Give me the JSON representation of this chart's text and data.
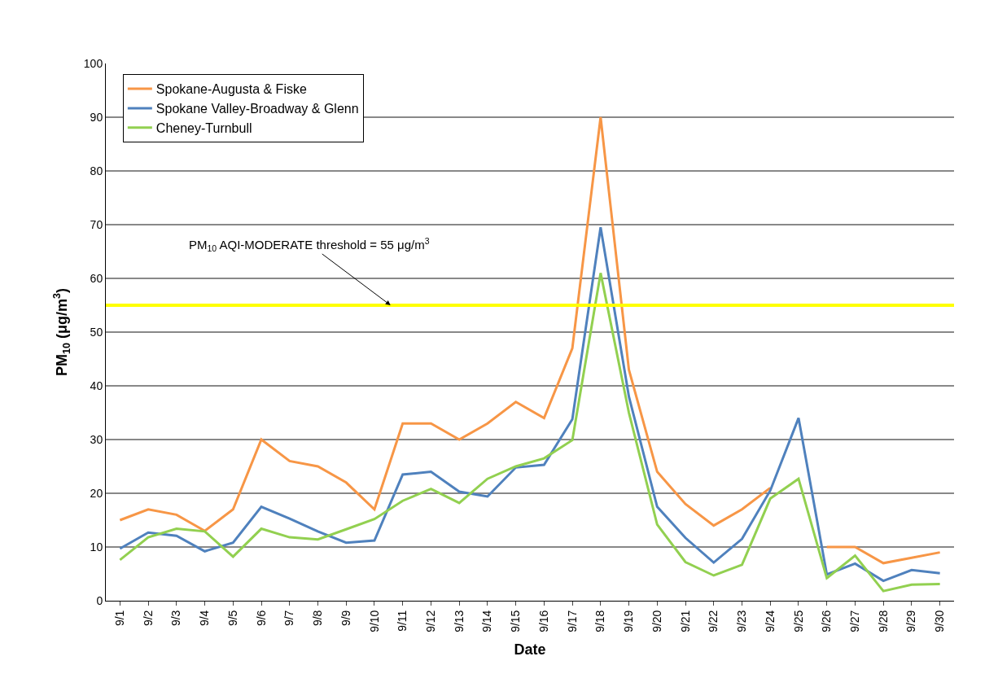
{
  "chart_data": {
    "type": "line",
    "categories": [
      "9/1",
      "9/2",
      "9/3",
      "9/4",
      "9/5",
      "9/6",
      "9/7",
      "9/8",
      "9/9",
      "9/10",
      "9/11",
      "9/12",
      "9/13",
      "9/14",
      "9/15",
      "9/16",
      "9/17",
      "9/18",
      "9/19",
      "9/20",
      "9/21",
      "9/22",
      "9/23",
      "9/24",
      "9/25",
      "9/26",
      "9/27",
      "9/28",
      "9/29",
      "9/30"
    ],
    "series": [
      {
        "name": "Spokane-Augusta & Fiske",
        "color": "#f79646",
        "values": [
          15,
          17,
          16,
          13,
          17,
          30,
          26,
          25,
          22,
          17,
          33,
          33,
          30,
          33,
          37,
          34,
          47,
          90,
          43,
          24,
          18,
          14,
          17,
          21,
          null,
          10,
          10,
          7,
          8,
          9
        ]
      },
      {
        "name": "Spokane Valley-Broadway & Glenn",
        "color": "#4f81bd",
        "values": [
          9.7,
          12.7,
          12.1,
          9.2,
          10.8,
          17.5,
          15.3,
          12.9,
          10.8,
          11.2,
          23.5,
          24,
          20.3,
          19.4,
          24.8,
          25.3,
          33.8,
          69.5,
          38,
          17.5,
          11.7,
          7.1,
          11.5,
          20.5,
          34,
          4.9,
          6.9,
          3.7,
          5.7,
          5.1
        ]
      },
      {
        "name": "Cheney-Turnbull",
        "color": "#92d050",
        "values": [
          7.6,
          11.8,
          13.4,
          12.9,
          8.2,
          13.4,
          11.8,
          11.4,
          13.3,
          15.2,
          18.6,
          20.8,
          18.2,
          22.7,
          25,
          26.5,
          29.9,
          61,
          35,
          14.2,
          7.2,
          4.7,
          6.7,
          19,
          22.7,
          4.2,
          8.4,
          1.8,
          3,
          3.1
        ]
      }
    ],
    "xlabel": "Date",
    "ylabel": "PM$_{10}$ (μg/m$^{3}$)",
    "ylim": [
      0,
      100
    ],
    "yticks": [
      0,
      10,
      20,
      30,
      40,
      50,
      60,
      70,
      80,
      90,
      100
    ],
    "ref_lines": [
      {
        "axis": "y",
        "value": 55,
        "label": "PM$_{10}$ AQI-MODERATE threshold = 55 μg/m$^{3}$",
        "color": "#ffff00"
      }
    ],
    "grid": "y",
    "legend": "top left",
    "marker": "none",
    "line_style": "solid"
  }
}
